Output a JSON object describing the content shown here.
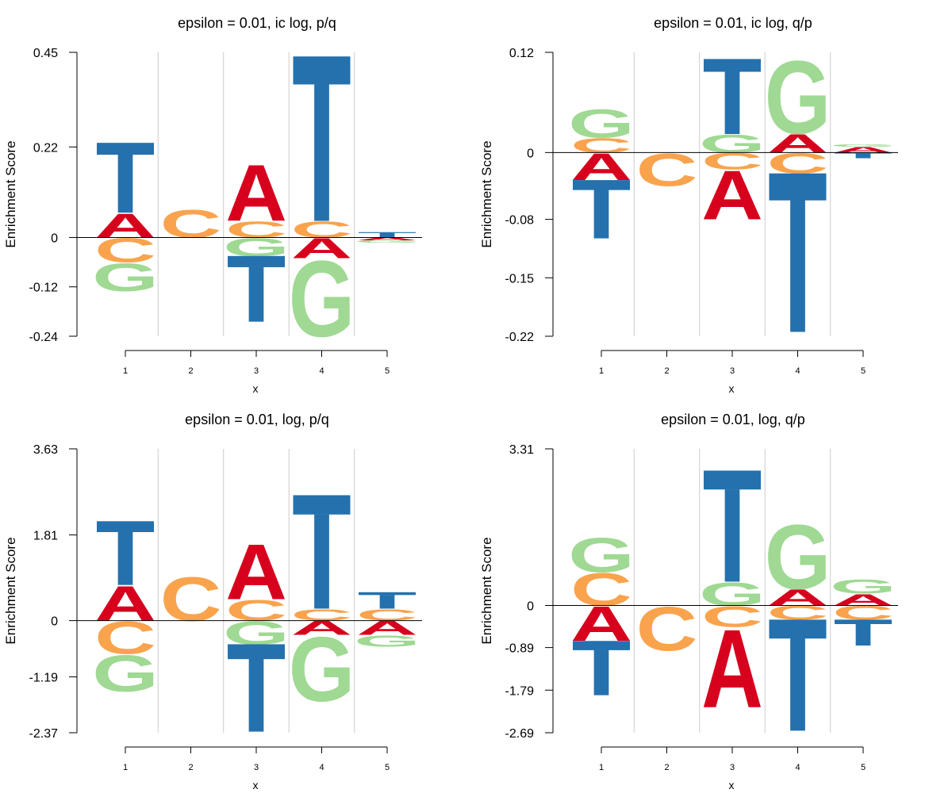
{
  "chart_data": [
    {
      "type": "sequence-logo",
      "title": "epsilon = 0.01, ic log, p/q",
      "xlabel": "x",
      "ylabel": "Enrichment Score",
      "x_ticks": [
        "1",
        "2",
        "3",
        "4",
        "5"
      ],
      "y_ticks": [
        "0.45",
        "0.22",
        "0",
        "-0.12",
        "-0.24"
      ],
      "ylim": [
        -0.24,
        0.45
      ],
      "positions": [
        {
          "x": 1,
          "positive": [
            [
              "A",
              0.06
            ],
            [
              "T",
              0.17
            ]
          ],
          "negative": [
            [
              "C",
              0.06
            ],
            [
              "G",
              0.07
            ]
          ]
        },
        {
          "x": 2,
          "positive": [
            [
              "C",
              0.07
            ]
          ],
          "negative": []
        },
        {
          "x": 3,
          "positive": [
            [
              "C",
              0.04
            ],
            [
              "A",
              0.14
            ]
          ],
          "negative": [
            [
              "G",
              0.045
            ],
            [
              "T",
              0.16
            ]
          ]
        },
        {
          "x": 4,
          "positive": [
            [
              "C",
              0.04
            ],
            [
              "T",
              0.4
            ]
          ],
          "negative": [
            [
              "A",
              0.05
            ],
            [
              "G",
              0.19
            ]
          ]
        },
        {
          "x": 5,
          "positive": [
            [
              "T",
              0.013
            ]
          ],
          "negative": [
            [
              "A",
              0.007
            ],
            [
              "G",
              0.006
            ]
          ]
        }
      ]
    },
    {
      "type": "sequence-logo",
      "title": "epsilon = 0.01, ic log, q/p",
      "xlabel": "x",
      "ylabel": "Enrichment Score",
      "x_ticks": [
        "1",
        "2",
        "3",
        "4",
        "5"
      ],
      "y_ticks": [
        "0.12",
        "0",
        "-0.08",
        "-0.15",
        "-0.22"
      ],
      "ylim": [
        -0.22,
        0.12
      ],
      "positions": [
        {
          "x": 1,
          "positive": [
            [
              "C",
              0.018
            ],
            [
              "G",
              0.035
            ]
          ],
          "negative": [
            [
              "A",
              0.033
            ],
            [
              "T",
              0.07
            ]
          ]
        },
        {
          "x": 2,
          "positive": [],
          "negative": [
            [
              "C",
              0.04
            ]
          ]
        },
        {
          "x": 3,
          "positive": [
            [
              "G",
              0.022
            ],
            [
              "T",
              0.09
            ]
          ],
          "negative": [
            [
              "C",
              0.02
            ],
            [
              "A",
              0.06
            ]
          ]
        },
        {
          "x": 4,
          "positive": [
            [
              "A",
              0.023
            ],
            [
              "G",
              0.09
            ]
          ],
          "negative": [
            [
              "C",
              0.025
            ],
            [
              "T",
              0.19
            ]
          ]
        },
        {
          "x": 5,
          "positive": [
            [
              "A",
              0.007
            ],
            [
              "G",
              0.003
            ]
          ],
          "negative": [
            [
              "T",
              0.007
            ]
          ]
        }
      ]
    },
    {
      "type": "sequence-logo",
      "title": "epsilon = 0.01, log, p/q",
      "xlabel": "x",
      "ylabel": "Enrichment Score",
      "x_ticks": [
        "1",
        "2",
        "3",
        "4",
        "5"
      ],
      "y_ticks": [
        "3.63",
        "1.81",
        "0",
        "-1.19",
        "-2.37"
      ],
      "ylim": [
        -2.37,
        3.63
      ],
      "positions": [
        {
          "x": 1,
          "positive": [
            [
              "A",
              0.75
            ],
            [
              "T",
              1.35
            ]
          ],
          "negative": [
            [
              "C",
              0.7
            ],
            [
              "G",
              0.8
            ]
          ]
        },
        {
          "x": 2,
          "positive": [
            [
              "C",
              0.95
            ]
          ],
          "negative": []
        },
        {
          "x": 3,
          "positive": [
            [
              "C",
              0.45
            ],
            [
              "A",
              1.2
            ]
          ],
          "negative": [
            [
              "G",
              0.5
            ],
            [
              "T",
              1.85
            ]
          ]
        },
        {
          "x": 4,
          "positive": [
            [
              "C",
              0.25
            ],
            [
              "T",
              2.4
            ]
          ],
          "negative": [
            [
              "A",
              0.3
            ],
            [
              "G",
              1.4
            ]
          ]
        },
        {
          "x": 5,
          "positive": [
            [
              "C",
              0.25
            ],
            [
              "T",
              0.35
            ]
          ],
          "negative": [
            [
              "A",
              0.3
            ],
            [
              "G",
              0.25
            ]
          ]
        }
      ]
    },
    {
      "type": "sequence-logo",
      "title": "epsilon = 0.01, log, q/p",
      "xlabel": "x",
      "ylabel": "Enrichment Score",
      "x_ticks": [
        "1",
        "2",
        "3",
        "4",
        "5"
      ],
      "y_ticks": [
        "3.31",
        "0",
        "-0.89",
        "-1.79",
        "-2.69"
      ],
      "ylim": [
        -2.69,
        3.31
      ],
      "positions": [
        {
          "x": 1,
          "positive": [
            [
              "C",
              0.7
            ],
            [
              "G",
              0.75
            ]
          ],
          "negative": [
            [
              "A",
              0.75
            ],
            [
              "T",
              1.15
            ]
          ]
        },
        {
          "x": 2,
          "positive": [],
          "negative": [
            [
              "C",
              0.95
            ]
          ]
        },
        {
          "x": 3,
          "positive": [
            [
              "G",
              0.5
            ],
            [
              "T",
              2.35
            ]
          ],
          "negative": [
            [
              "C",
              0.45
            ],
            [
              "A",
              1.7
            ]
          ]
        },
        {
          "x": 4,
          "positive": [
            [
              "A",
              0.35
            ],
            [
              "G",
              1.4
            ]
          ],
          "negative": [
            [
              "C",
              0.3
            ],
            [
              "T",
              2.35
            ]
          ]
        },
        {
          "x": 5,
          "positive": [
            [
              "A",
              0.25
            ],
            [
              "G",
              0.3
            ]
          ],
          "negative": [
            [
              "C",
              0.3
            ],
            [
              "T",
              0.55
            ]
          ]
        }
      ]
    }
  ],
  "colors": {
    "A": "#d7001d",
    "C": "#f9a34d",
    "G": "#9fd993",
    "T": "#2471ad",
    "grid": "#cccccc",
    "axis": "#000000"
  }
}
